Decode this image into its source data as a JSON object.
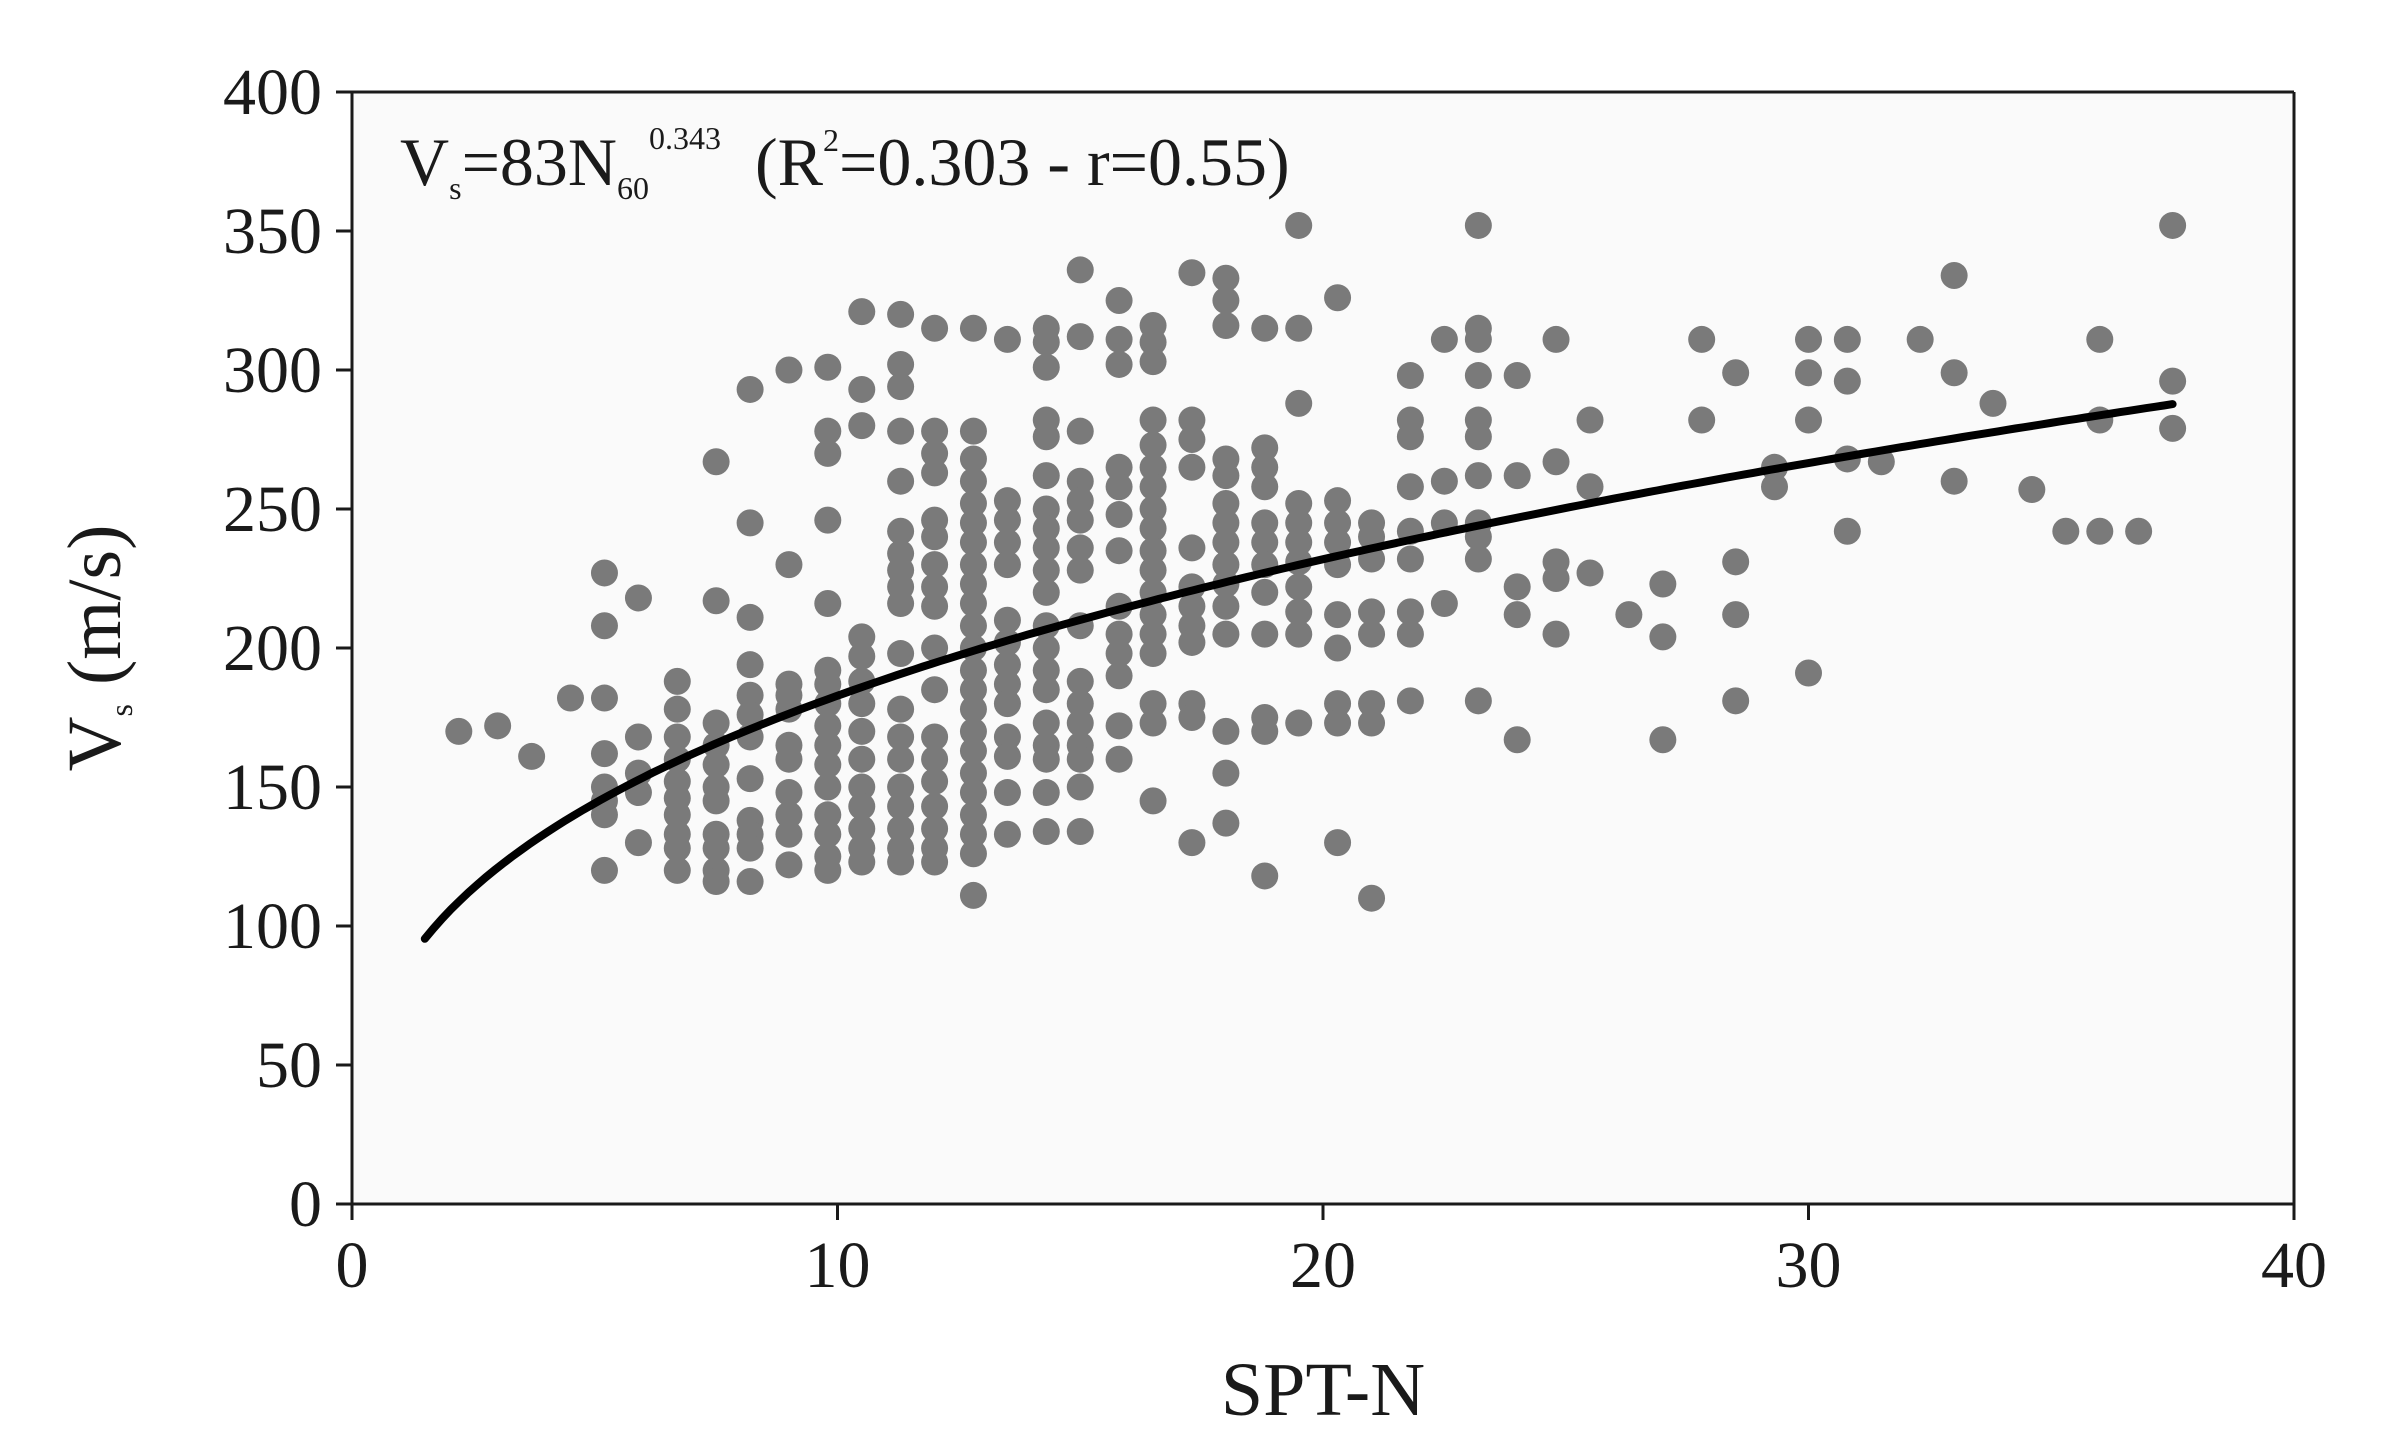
{
  "chart_data": {
    "type": "scatter",
    "xlabel": "SPT-N",
    "ylabel": {
      "base": "V",
      "sub": "s",
      "rest": " (m/s)"
    },
    "xlim": [
      0,
      40
    ],
    "ylim": [
      0,
      400
    ],
    "xticks": [
      "0",
      "10",
      "20",
      "30",
      "40"
    ],
    "yticks": [
      "0",
      "50",
      "100",
      "150",
      "200",
      "250",
      "300",
      "350",
      "400"
    ],
    "grid": false,
    "annotation": {
      "v": "V",
      "v_sub": "s",
      "eq": "=83N",
      "n_sub": "60",
      "exp": "0.343",
      "r_open": "  (R",
      "r_sup": "2",
      "r_rest": "=0.303 - r=0.55)"
    },
    "fit": {
      "a": 83,
      "b": 0.343,
      "x_range": [
        1.5,
        37.5
      ]
    },
    "colors": {
      "points": "#7a7a7a",
      "fit": "#000000",
      "plot_bg": "#fafafa",
      "axis": "#1a1a1a"
    },
    "points": [
      [
        2.2,
        170
      ],
      [
        3,
        172
      ],
      [
        3.7,
        161
      ],
      [
        4.5,
        182
      ],
      [
        5.2,
        227
      ],
      [
        5.2,
        208
      ],
      [
        5.2,
        182
      ],
      [
        5.2,
        162
      ],
      [
        5.2,
        150
      ],
      [
        5.2,
        145
      ],
      [
        5.2,
        140
      ],
      [
        5.2,
        120
      ],
      [
        5.9,
        218
      ],
      [
        5.9,
        168
      ],
      [
        5.9,
        155
      ],
      [
        5.9,
        148
      ],
      [
        5.9,
        130
      ],
      [
        6.7,
        188
      ],
      [
        6.7,
        178
      ],
      [
        6.7,
        168
      ],
      [
        6.7,
        160
      ],
      [
        6.7,
        152
      ],
      [
        6.7,
        146
      ],
      [
        6.7,
        140
      ],
      [
        6.7,
        133
      ],
      [
        6.7,
        128
      ],
      [
        6.7,
        120
      ],
      [
        7.5,
        267
      ],
      [
        7.5,
        217
      ],
      [
        7.5,
        173
      ],
      [
        7.5,
        165
      ],
      [
        7.5,
        158
      ],
      [
        7.5,
        150
      ],
      [
        7.5,
        145
      ],
      [
        7.5,
        133
      ],
      [
        7.5,
        128
      ],
      [
        7.5,
        120
      ],
      [
        7.5,
        116
      ],
      [
        8.2,
        293
      ],
      [
        8.2,
        245
      ],
      [
        8.2,
        211
      ],
      [
        8.2,
        194
      ],
      [
        8.2,
        183
      ],
      [
        8.2,
        176
      ],
      [
        8.2,
        168
      ],
      [
        8.2,
        153
      ],
      [
        8.2,
        138
      ],
      [
        8.2,
        133
      ],
      [
        8.2,
        128
      ],
      [
        8.2,
        116
      ],
      [
        9,
        300
      ],
      [
        9,
        230
      ],
      [
        9,
        187
      ],
      [
        9,
        183
      ],
      [
        9,
        178
      ],
      [
        9,
        165
      ],
      [
        9,
        160
      ],
      [
        9,
        148
      ],
      [
        9,
        140
      ],
      [
        9,
        133
      ],
      [
        9,
        122
      ],
      [
        9.8,
        301
      ],
      [
        9.8,
        278
      ],
      [
        9.8,
        270
      ],
      [
        9.8,
        246
      ],
      [
        9.8,
        216
      ],
      [
        9.8,
        192
      ],
      [
        9.8,
        187
      ],
      [
        9.8,
        180
      ],
      [
        9.8,
        172
      ],
      [
        9.8,
        165
      ],
      [
        9.8,
        158
      ],
      [
        9.8,
        150
      ],
      [
        9.8,
        140
      ],
      [
        9.8,
        133
      ],
      [
        9.8,
        125
      ],
      [
        9.8,
        120
      ],
      [
        10.5,
        321
      ],
      [
        10.5,
        293
      ],
      [
        10.5,
        280
      ],
      [
        10.5,
        204
      ],
      [
        10.5,
        197
      ],
      [
        10.5,
        188
      ],
      [
        10.5,
        180
      ],
      [
        10.5,
        170
      ],
      [
        10.5,
        160
      ],
      [
        10.5,
        150
      ],
      [
        10.5,
        143
      ],
      [
        10.5,
        135
      ],
      [
        10.5,
        128
      ],
      [
        10.5,
        123
      ],
      [
        11.3,
        320
      ],
      [
        11.3,
        302
      ],
      [
        11.3,
        294
      ],
      [
        11.3,
        278
      ],
      [
        11.3,
        260
      ],
      [
        11.3,
        242
      ],
      [
        11.3,
        234
      ],
      [
        11.3,
        228
      ],
      [
        11.3,
        222
      ],
      [
        11.3,
        216
      ],
      [
        11.3,
        198
      ],
      [
        11.3,
        178
      ],
      [
        11.3,
        168
      ],
      [
        11.3,
        160
      ],
      [
        11.3,
        150
      ],
      [
        11.3,
        143
      ],
      [
        11.3,
        135
      ],
      [
        11.3,
        128
      ],
      [
        11.3,
        123
      ],
      [
        12,
        315
      ],
      [
        12,
        278
      ],
      [
        12,
        270
      ],
      [
        12,
        263
      ],
      [
        12,
        246
      ],
      [
        12,
        240
      ],
      [
        12,
        230
      ],
      [
        12,
        222
      ],
      [
        12,
        215
      ],
      [
        12,
        200
      ],
      [
        12,
        185
      ],
      [
        12,
        168
      ],
      [
        12,
        160
      ],
      [
        12,
        152
      ],
      [
        12,
        143
      ],
      [
        12,
        135
      ],
      [
        12,
        128
      ],
      [
        12,
        123
      ],
      [
        12.8,
        315
      ],
      [
        12.8,
        278
      ],
      [
        12.8,
        268
      ],
      [
        12.8,
        260
      ],
      [
        12.8,
        252
      ],
      [
        12.8,
        245
      ],
      [
        12.8,
        238
      ],
      [
        12.8,
        230
      ],
      [
        12.8,
        223
      ],
      [
        12.8,
        216
      ],
      [
        12.8,
        208
      ],
      [
        12.8,
        200
      ],
      [
        12.8,
        192
      ],
      [
        12.8,
        185
      ],
      [
        12.8,
        178
      ],
      [
        12.8,
        170
      ],
      [
        12.8,
        163
      ],
      [
        12.8,
        155
      ],
      [
        12.8,
        148
      ],
      [
        12.8,
        140
      ],
      [
        12.8,
        133
      ],
      [
        12.8,
        126
      ],
      [
        12.8,
        111
      ],
      [
        13.5,
        311
      ],
      [
        13.5,
        253
      ],
      [
        13.5,
        246
      ],
      [
        13.5,
        238
      ],
      [
        13.5,
        230
      ],
      [
        13.5,
        210
      ],
      [
        13.5,
        202
      ],
      [
        13.5,
        194
      ],
      [
        13.5,
        187
      ],
      [
        13.5,
        180
      ],
      [
        13.5,
        168
      ],
      [
        13.5,
        161
      ],
      [
        13.5,
        148
      ],
      [
        13.5,
        133
      ],
      [
        14.3,
        315
      ],
      [
        14.3,
        310
      ],
      [
        14.3,
        301
      ],
      [
        14.3,
        282
      ],
      [
        14.3,
        276
      ],
      [
        14.3,
        262
      ],
      [
        14.3,
        250
      ],
      [
        14.3,
        243
      ],
      [
        14.3,
        236
      ],
      [
        14.3,
        228
      ],
      [
        14.3,
        220
      ],
      [
        14.3,
        208
      ],
      [
        14.3,
        200
      ],
      [
        14.3,
        192
      ],
      [
        14.3,
        185
      ],
      [
        14.3,
        173
      ],
      [
        14.3,
        165
      ],
      [
        14.3,
        160
      ],
      [
        14.3,
        148
      ],
      [
        14.3,
        134
      ],
      [
        15,
        336
      ],
      [
        15,
        312
      ],
      [
        15,
        278
      ],
      [
        15,
        260
      ],
      [
        15,
        253
      ],
      [
        15,
        246
      ],
      [
        15,
        236
      ],
      [
        15,
        228
      ],
      [
        15,
        208
      ],
      [
        15,
        188
      ],
      [
        15,
        180
      ],
      [
        15,
        173
      ],
      [
        15,
        165
      ],
      [
        15,
        160
      ],
      [
        15,
        150
      ],
      [
        15,
        134
      ],
      [
        15.8,
        325
      ],
      [
        15.8,
        311
      ],
      [
        15.8,
        302
      ],
      [
        15.8,
        265
      ],
      [
        15.8,
        258
      ],
      [
        15.8,
        248
      ],
      [
        15.8,
        235
      ],
      [
        15.8,
        215
      ],
      [
        15.8,
        205
      ],
      [
        15.8,
        198
      ],
      [
        15.8,
        190
      ],
      [
        15.8,
        172
      ],
      [
        15.8,
        160
      ],
      [
        16.5,
        316
      ],
      [
        16.5,
        310
      ],
      [
        16.5,
        303
      ],
      [
        16.5,
        282
      ],
      [
        16.5,
        273
      ],
      [
        16.5,
        265
      ],
      [
        16.5,
        258
      ],
      [
        16.5,
        250
      ],
      [
        16.5,
        243
      ],
      [
        16.5,
        235
      ],
      [
        16.5,
        228
      ],
      [
        16.5,
        220
      ],
      [
        16.5,
        212
      ],
      [
        16.5,
        205
      ],
      [
        16.5,
        198
      ],
      [
        16.5,
        180
      ],
      [
        16.5,
        173
      ],
      [
        16.5,
        145
      ],
      [
        17.3,
        335
      ],
      [
        17.3,
        282
      ],
      [
        17.3,
        275
      ],
      [
        17.3,
        265
      ],
      [
        17.3,
        236
      ],
      [
        17.3,
        222
      ],
      [
        17.3,
        215
      ],
      [
        17.3,
        208
      ],
      [
        17.3,
        202
      ],
      [
        17.3,
        180
      ],
      [
        17.3,
        175
      ],
      [
        17.3,
        130
      ],
      [
        18,
        333
      ],
      [
        18,
        325
      ],
      [
        18,
        316
      ],
      [
        18,
        268
      ],
      [
        18,
        262
      ],
      [
        18,
        252
      ],
      [
        18,
        245
      ],
      [
        18,
        238
      ],
      [
        18,
        230
      ],
      [
        18,
        223
      ],
      [
        18,
        215
      ],
      [
        18,
        205
      ],
      [
        18,
        170
      ],
      [
        18,
        155
      ],
      [
        18,
        137
      ],
      [
        18.8,
        315
      ],
      [
        18.8,
        272
      ],
      [
        18.8,
        265
      ],
      [
        18.8,
        258
      ],
      [
        18.8,
        245
      ],
      [
        18.8,
        238
      ],
      [
        18.8,
        230
      ],
      [
        18.8,
        220
      ],
      [
        18.8,
        205
      ],
      [
        18.8,
        175
      ],
      [
        18.8,
        170
      ],
      [
        18.8,
        118
      ],
      [
        19.5,
        352
      ],
      [
        19.5,
        315
      ],
      [
        19.5,
        288
      ],
      [
        19.5,
        252
      ],
      [
        19.5,
        245
      ],
      [
        19.5,
        238
      ],
      [
        19.5,
        231
      ],
      [
        19.5,
        222
      ],
      [
        19.5,
        213
      ],
      [
        19.5,
        205
      ],
      [
        19.5,
        173
      ],
      [
        20.3,
        326
      ],
      [
        20.3,
        253
      ],
      [
        20.3,
        245
      ],
      [
        20.3,
        238
      ],
      [
        20.3,
        230
      ],
      [
        20.3,
        212
      ],
      [
        20.3,
        200
      ],
      [
        20.3,
        180
      ],
      [
        20.3,
        173
      ],
      [
        20.3,
        130
      ],
      [
        21,
        245
      ],
      [
        21,
        240
      ],
      [
        21,
        232
      ],
      [
        21,
        213
      ],
      [
        21,
        205
      ],
      [
        21,
        180
      ],
      [
        21,
        173
      ],
      [
        21,
        110
      ],
      [
        21.8,
        298
      ],
      [
        21.8,
        282
      ],
      [
        21.8,
        276
      ],
      [
        21.8,
        258
      ],
      [
        21.8,
        242
      ],
      [
        21.8,
        232
      ],
      [
        21.8,
        213
      ],
      [
        21.8,
        205
      ],
      [
        21.8,
        181
      ],
      [
        22.5,
        311
      ],
      [
        22.5,
        260
      ],
      [
        22.5,
        245
      ],
      [
        22.5,
        216
      ],
      [
        23.2,
        352
      ],
      [
        23.2,
        315
      ],
      [
        23.2,
        311
      ],
      [
        23.2,
        298
      ],
      [
        23.2,
        282
      ],
      [
        23.2,
        276
      ],
      [
        23.2,
        262
      ],
      [
        23.2,
        245
      ],
      [
        23.2,
        240
      ],
      [
        23.2,
        232
      ],
      [
        23.2,
        181
      ],
      [
        24,
        298
      ],
      [
        24,
        262
      ],
      [
        24,
        222
      ],
      [
        24,
        212
      ],
      [
        24,
        167
      ],
      [
        24.8,
        311
      ],
      [
        24.8,
        267
      ],
      [
        24.8,
        231
      ],
      [
        24.8,
        225
      ],
      [
        24.8,
        205
      ],
      [
        25.5,
        282
      ],
      [
        25.5,
        258
      ],
      [
        25.5,
        227
      ],
      [
        26.3,
        212
      ],
      [
        27,
        223
      ],
      [
        27,
        204
      ],
      [
        27,
        167
      ],
      [
        27.8,
        311
      ],
      [
        27.8,
        282
      ],
      [
        28.5,
        299
      ],
      [
        28.5,
        231
      ],
      [
        28.5,
        212
      ],
      [
        28.5,
        181
      ],
      [
        29.3,
        265
      ],
      [
        29.3,
        258
      ],
      [
        30,
        311
      ],
      [
        30,
        299
      ],
      [
        30,
        282
      ],
      [
        30,
        191
      ],
      [
        30.8,
        311
      ],
      [
        30.8,
        296
      ],
      [
        30.8,
        268
      ],
      [
        30.8,
        242
      ],
      [
        31.5,
        267
      ],
      [
        32.3,
        311
      ],
      [
        33,
        334
      ],
      [
        33,
        299
      ],
      [
        33,
        260
      ],
      [
        33.8,
        288
      ],
      [
        34.6,
        257
      ],
      [
        35.3,
        242
      ],
      [
        36,
        311
      ],
      [
        36,
        282
      ],
      [
        36,
        242
      ],
      [
        36.8,
        242
      ],
      [
        37.5,
        352
      ],
      [
        37.5,
        296
      ],
      [
        37.5,
        279
      ]
    ]
  }
}
